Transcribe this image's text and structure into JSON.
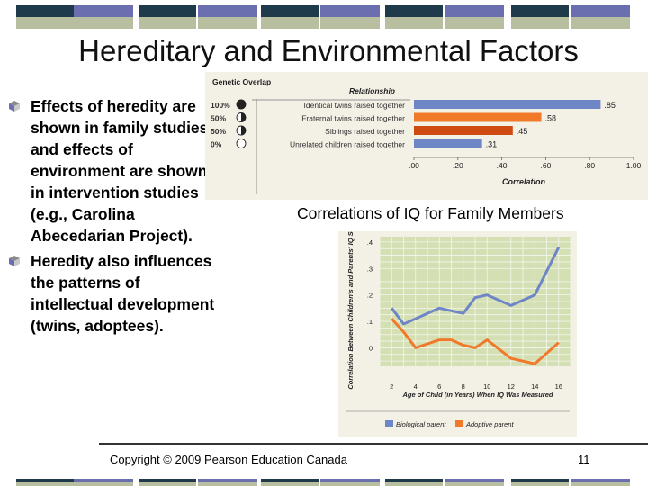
{
  "slide": {
    "title": "Hereditary and Environmental Factors",
    "bullets": [
      "Effects of heredity are shown in family studies and effects of environment are shown in intervention studies (e.g., Carolina Abecedarian Project).",
      "Heredity also influences the patterns of intellectual development (twins, adoptees)."
    ],
    "figure_caption": "Correlations of IQ for Family Members",
    "copyright": "Copyright © 2009 Pearson Education Canada",
    "page_number": "11"
  },
  "colors": {
    "deco_dark": "#1f3a4a",
    "deco_olive": "#8a8a3a",
    "deco_purple": "#6b6fb0",
    "deco_light": "#b7bfa0",
    "blue": "#6f86c6",
    "orange": "#f07a2a",
    "darkorange": "#cf4a10",
    "figure_bg": "#f3f0e6"
  },
  "chart_data": [
    {
      "type": "bar",
      "orientation": "horizontal",
      "header_left": "Genetic Overlap",
      "header_right": "Relationship",
      "categories": [
        "Identical twins raised together",
        "Fraternal twins raised together",
        "Siblings raised together",
        "Unrelated children raised together"
      ],
      "overlap_labels": [
        "100%",
        "50%",
        "50%",
        "0%"
      ],
      "values": [
        0.85,
        0.58,
        0.45,
        0.31
      ],
      "value_labels": [
        ".85",
        ".58",
        ".45",
        ".31"
      ],
      "bar_colors": [
        "#6f86c6",
        "#f07a2a",
        "#cf4a10",
        "#6f86c6"
      ],
      "xticks": [
        ".00",
        ".20",
        ".40",
        ".60",
        ".80",
        "1.00"
      ],
      "xlabel": "Correlation",
      "xlim": [
        0,
        1
      ]
    },
    {
      "type": "line",
      "ylabel": "Correlation Between Children's and Parents' IQ Scores",
      "xlabel": "Age of Child (in Years) When IQ Was Measured",
      "xlim": [
        1,
        17
      ],
      "ylim": [
        -0.07,
        0.42
      ],
      "yticks": [
        ".4",
        ".3",
        ".2",
        ".1",
        "0"
      ],
      "xticks": [
        "2",
        "4",
        "6",
        "8",
        "10",
        "12",
        "14",
        "16"
      ],
      "series": [
        {
          "name": "Biological parent",
          "color": "#6f86c6",
          "x": [
            2,
            3,
            4,
            6,
            7,
            8,
            9,
            10,
            12,
            14,
            16
          ],
          "y": [
            0.15,
            0.09,
            0.11,
            0.15,
            0.14,
            0.13,
            0.19,
            0.2,
            0.16,
            0.2,
            0.38
          ]
        },
        {
          "name": "Adoptive parent",
          "color": "#f07a2a",
          "x": [
            2,
            3,
            4,
            6,
            7,
            8,
            9,
            10,
            12,
            14,
            16
          ],
          "y": [
            0.11,
            0.06,
            0.0,
            0.03,
            0.03,
            0.01,
            0.0,
            0.03,
            -0.04,
            -0.06,
            0.02
          ]
        }
      ]
    }
  ]
}
